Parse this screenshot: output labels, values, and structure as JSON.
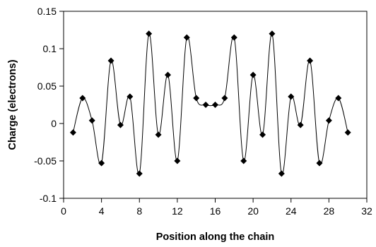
{
  "chart_data": {
    "type": "line",
    "title": "",
    "xlabel": "Position along the chain",
    "ylabel": "Charge (electrons)",
    "xlim": [
      0,
      32
    ],
    "ylim": [
      -0.1,
      0.15
    ],
    "x_ticks": [
      0,
      4,
      8,
      12,
      16,
      20,
      24,
      28,
      32
    ],
    "x_tick_labels": [
      "0",
      "4",
      "8",
      "12",
      "16",
      "20",
      "24",
      "28",
      "32"
    ],
    "y_ticks": [
      0.15,
      0.1,
      0.05,
      0,
      -0.05,
      -0.1
    ],
    "y_tick_labels": [
      "0.15",
      "0.1",
      "0.05",
      "0",
      "-0.05",
      "-0.1"
    ],
    "grid": false,
    "legend": "none",
    "line_color": "#000000",
    "marker": "diamond",
    "series": [
      {
        "x": [
          1,
          2,
          3,
          4,
          5,
          6,
          7,
          8,
          9,
          10,
          11,
          12,
          13,
          14,
          15,
          16,
          17,
          18,
          19,
          20,
          21,
          22,
          23,
          24,
          25,
          26,
          27,
          28,
          29,
          30
        ],
        "values": [
          -0.012,
          0.034,
          0.004,
          -0.053,
          0.084,
          -0.002,
          0.036,
          -0.067,
          0.12,
          -0.015,
          0.065,
          -0.05,
          0.115,
          0.034,
          0.025,
          0.025,
          0.034,
          0.115,
          -0.05,
          0.065,
          -0.015,
          0.12,
          -0.067,
          0.036,
          -0.002,
          0.084,
          -0.053,
          0.004,
          0.034,
          -0.012
        ]
      }
    ]
  }
}
